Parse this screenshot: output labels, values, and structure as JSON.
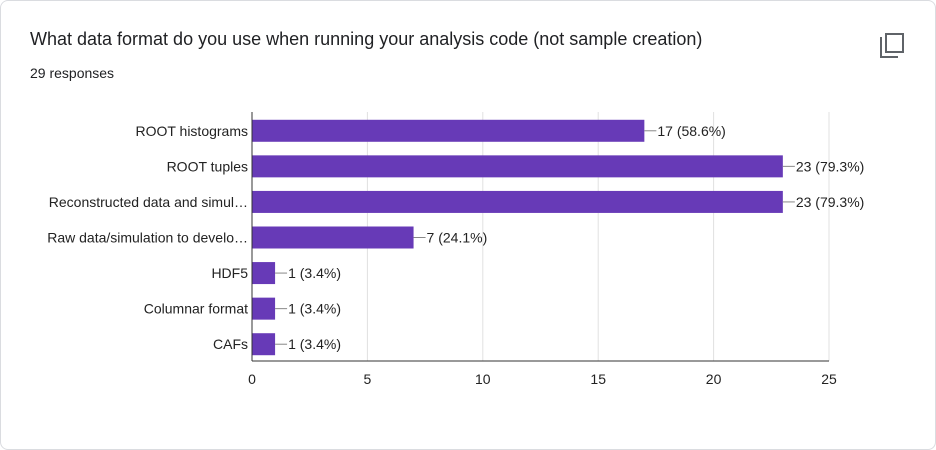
{
  "header": {
    "title": "What data format do you use when running your analysis code (not sample creation)",
    "responses": "29 responses"
  },
  "icons": {
    "copy": "copy-chart-icon"
  },
  "colors": {
    "bar": "#673ab7",
    "grid": "#e0e0e0",
    "axis": "#333333",
    "text": "#202124"
  },
  "chart_data": {
    "type": "bar",
    "orientation": "horizontal",
    "title": "What data format do you use when running your analysis code (not sample creation)",
    "categories": [
      "ROOT histograms",
      "ROOT tuples",
      "Reconstructed data and simul…",
      "Raw data/simulation to develo…",
      "HDF5",
      "Columnar format",
      "CAFs"
    ],
    "values": [
      17,
      23,
      23,
      7,
      1,
      1,
      1
    ],
    "data_labels": [
      "17 (58.6%)",
      "23 (79.3%)",
      "23 (79.3%)",
      "7 (24.1%)",
      "1 (3.4%)",
      "1 (3.4%)",
      "1 (3.4%)"
    ],
    "xlim": [
      0,
      25
    ],
    "xticks": [
      0,
      5,
      10,
      15,
      20,
      25
    ],
    "grid": true,
    "xlabel": "",
    "ylabel": ""
  }
}
